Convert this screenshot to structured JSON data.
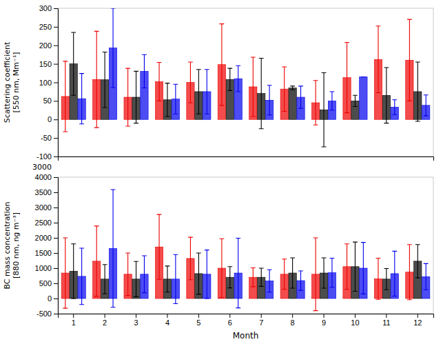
{
  "chart_data": [
    {
      "type": "bar",
      "y_label": "Scattering coefficient\n[550 nm, Mm⁻¹]",
      "annotations": [
        "3000"
      ],
      "categories": [
        "1",
        "2",
        "3",
        "4",
        "5",
        "6",
        "7",
        "8",
        "9",
        "10",
        "11",
        "12"
      ],
      "series": [
        {
          "color": "#ee0000",
          "values": [
            62,
            108,
            60,
            102,
            100,
            148,
            88,
            82,
            45,
            113,
            162,
            160
          ],
          "errors": [
            95,
            130,
            78,
            52,
            55,
            110,
            80,
            60,
            60,
            95,
            90,
            110
          ]
        },
        {
          "color": "#000000",
          "values": [
            150,
            107,
            60,
            53,
            75,
            108,
            70,
            85,
            26,
            50,
            65,
            75
          ],
          "errors": [
            85,
            75,
            70,
            45,
            60,
            30,
            95,
            5,
            100,
            15,
            75,
            80
          ]
        },
        {
          "color": "#0000ee",
          "values": [
            56,
            193,
            130,
            55,
            75,
            110,
            52,
            60,
            50,
            115,
            33,
            38
          ],
          "errors": [
            68,
            107,
            45,
            40,
            60,
            35,
            40,
            30,
            25,
            0,
            20,
            28
          ]
        }
      ],
      "ylim": [
        -100,
        300
      ],
      "yticks": [
        -100,
        -50,
        0,
        50,
        100,
        150,
        200,
        250,
        300
      ],
      "tick_labels": "y",
      "grid": false
    },
    {
      "type": "bar",
      "x_label": "Month",
      "y_label": "BC mass concentration\n[880 nm, ng m⁻³]",
      "categories": [
        "1",
        "2",
        "3",
        "4",
        "5",
        "6",
        "7",
        "8",
        "9",
        "10",
        "11",
        "12"
      ],
      "series": [
        {
          "color": "#ee0000",
          "values": [
            840,
            1230,
            800,
            1700,
            1320,
            1000,
            700,
            800,
            800,
            1050,
            650,
            870
          ],
          "errors": [
            1160,
            1160,
            700,
            1070,
            700,
            970,
            310,
            500,
            1200,
            750,
            680,
            910
          ]
        },
        {
          "color": "#000000",
          "values": [
            900,
            640,
            640,
            640,
            820,
            700,
            700,
            840,
            840,
            1050,
            640,
            1230
          ],
          "errors": [
            900,
            480,
            580,
            430,
            680,
            350,
            300,
            500,
            500,
            810,
            350,
            550
          ]
        },
        {
          "color": "#0000ee",
          "values": [
            730,
            1650,
            800,
            640,
            800,
            840,
            580,
            590,
            850,
            1000,
            820,
            720
          ],
          "errors": [
            930,
            1940,
            610,
            810,
            800,
            1150,
            370,
            320,
            480,
            850,
            740,
            430
          ]
        }
      ],
      "ylim": [
        -500,
        4000
      ],
      "yticks": [
        -500,
        0,
        500,
        1000,
        1500,
        2000,
        2500,
        3000,
        3500,
        4000
      ],
      "grid": false
    }
  ]
}
